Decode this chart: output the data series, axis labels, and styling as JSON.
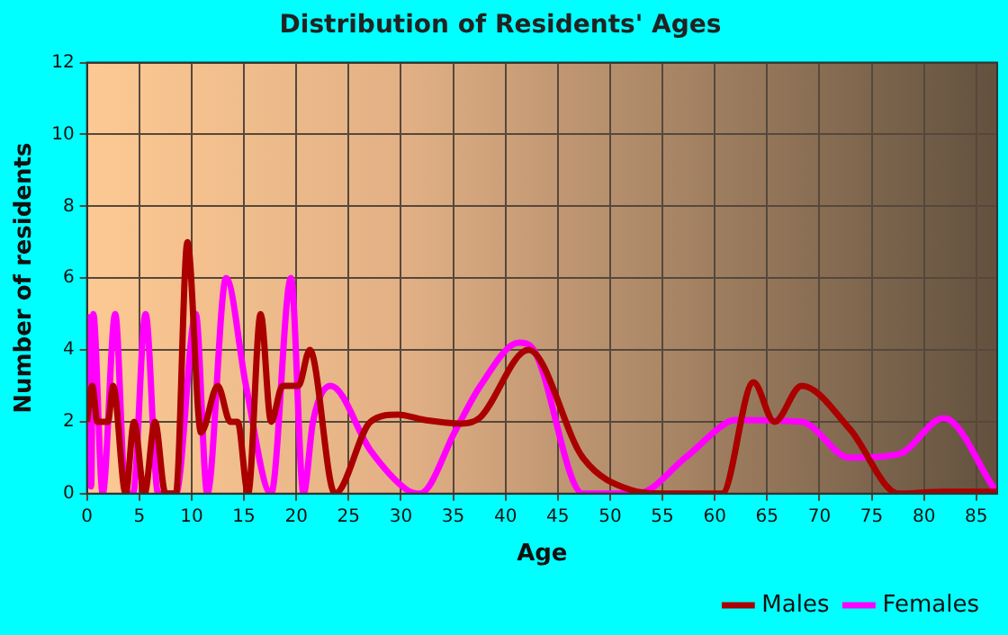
{
  "chart_data": {
    "type": "line",
    "title": "Distribution of Residents' Ages",
    "xlabel": "Age",
    "ylabel": "Number of residents",
    "xlim": [
      0,
      87
    ],
    "xticks": [
      0,
      5,
      10,
      15,
      20,
      25,
      30,
      35,
      40,
      45,
      50,
      55,
      60,
      65,
      70,
      75,
      80,
      85
    ],
    "ylim": [
      0,
      12
    ],
    "yticks": [
      0,
      2,
      4,
      6,
      8,
      10,
      12
    ],
    "grid": true,
    "legend": "bottom right",
    "marker": "none",
    "line_style": "solid",
    "series": [
      {
        "name": "Males",
        "color": "#aa0000",
        "x": [
          0,
          0.5,
          1,
          2,
          2.5,
          3.7,
          4.5,
          5.5,
          6.5,
          7.5,
          8.5,
          9.6,
          10.9,
          12.5,
          13.7,
          14.4,
          15.4,
          16.6,
          17.6,
          18.7,
          20.2,
          21.3,
          23.7,
          27.1,
          29.7,
          32.3,
          35.8,
          37.5,
          42.2,
          47.4,
          52,
          55,
          60.7,
          63.7,
          65.7,
          68.3,
          72.9,
          77.6,
          82,
          87
        ],
        "values": [
          2,
          3,
          2,
          2,
          3,
          0,
          2,
          0,
          2,
          0,
          0,
          7,
          1.7,
          3,
          2,
          2,
          0,
          5,
          2,
          3,
          3,
          4,
          0,
          2,
          2.2,
          2.05,
          1.95,
          2.1,
          4,
          1,
          0.1,
          0,
          0,
          3.1,
          2,
          3,
          1.8,
          0,
          0.05,
          0.05
        ]
      },
      {
        "name": "Females",
        "color": "#ff00ff",
        "x": [
          0.2,
          0.4,
          0.6,
          1.5,
          2.7,
          3.7,
          4.4,
          5.6,
          6.8,
          8.5,
          10.4,
          11.5,
          13.3,
          15.2,
          17.6,
          19.5,
          20.7,
          21.6,
          23.3,
          27.1,
          30.6,
          31.8,
          35.3,
          37.6,
          41.3,
          42.7,
          47.4,
          52.6,
          57.2,
          61.3,
          62,
          68.3,
          72.9,
          77.6,
          81.9,
          86.8
        ],
        "values": [
          5,
          0.2,
          5,
          0,
          5,
          0,
          0,
          5,
          0,
          0,
          5,
          0,
          6,
          3,
          0,
          6,
          0,
          2,
          3,
          1.2,
          0.1,
          0,
          1.8,
          3,
          4.2,
          4,
          0,
          0,
          1,
          2,
          2.05,
          2,
          1,
          1.1,
          2.1,
          0.1
        ]
      }
    ]
  }
}
